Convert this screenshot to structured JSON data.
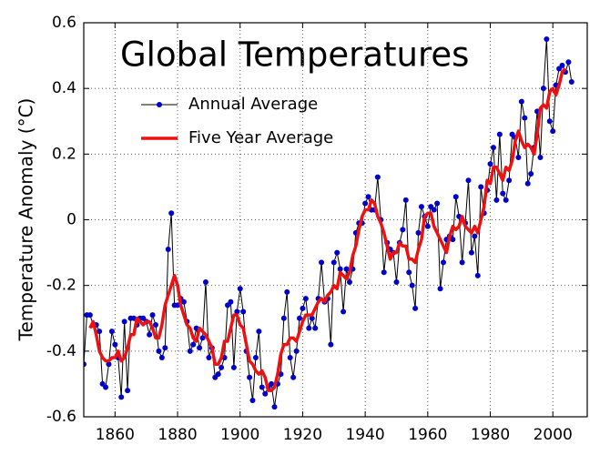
{
  "chart_data": {
    "type": "line",
    "title": "Global Temperatures",
    "y_label": "Temperature Anomaly (°C)",
    "xlim": [
      1850,
      2011
    ],
    "ylim": [
      -0.6,
      0.6
    ],
    "xticks": [
      1860,
      1880,
      1900,
      1920,
      1940,
      1960,
      1980,
      2000
    ],
    "yticks": [
      -0.6,
      -0.4,
      -0.2,
      0,
      0.2,
      0.4,
      0.6
    ],
    "grid": true,
    "legend": "upper left",
    "series": [
      {
        "name": "Annual Average",
        "color": "#0000cc",
        "line_color": "#000000",
        "markers": true,
        "x": [
          1850,
          1851,
          1852,
          1853,
          1854,
          1855,
          1856,
          1857,
          1858,
          1859,
          1860,
          1861,
          1862,
          1863,
          1864,
          1865,
          1866,
          1867,
          1868,
          1869,
          1870,
          1871,
          1872,
          1873,
          1874,
          1875,
          1876,
          1877,
          1878,
          1879,
          1880,
          1881,
          1882,
          1883,
          1884,
          1885,
          1886,
          1887,
          1888,
          1889,
          1890,
          1891,
          1892,
          1893,
          1894,
          1895,
          1896,
          1897,
          1898,
          1899,
          1900,
          1901,
          1902,
          1903,
          1904,
          1905,
          1906,
          1907,
          1908,
          1909,
          1910,
          1911,
          1912,
          1913,
          1914,
          1915,
          1916,
          1917,
          1918,
          1919,
          1920,
          1921,
          1922,
          1923,
          1924,
          1925,
          1926,
          1927,
          1928,
          1929,
          1930,
          1931,
          1932,
          1933,
          1934,
          1935,
          1936,
          1937,
          1938,
          1939,
          1940,
          1941,
          1942,
          1943,
          1944,
          1945,
          1946,
          1947,
          1948,
          1949,
          1950,
          1951,
          1952,
          1953,
          1954,
          1955,
          1956,
          1957,
          1958,
          1959,
          1960,
          1961,
          1962,
          1963,
          1964,
          1965,
          1966,
          1967,
          1968,
          1969,
          1970,
          1971,
          1972,
          1973,
          1974,
          1975,
          1976,
          1977,
          1978,
          1979,
          1980,
          1981,
          1982,
          1983,
          1984,
          1985,
          1986,
          1987,
          1988,
          1989,
          1990,
          1991,
          1992,
          1993,
          1994,
          1995,
          1996,
          1997,
          1998,
          1999,
          2000,
          2001,
          2002,
          2003,
          2004,
          2005,
          2006
        ],
        "values": [
          -0.44,
          -0.29,
          -0.29,
          -0.32,
          -0.32,
          -0.34,
          -0.5,
          -0.51,
          -0.44,
          -0.34,
          -0.38,
          -0.42,
          -0.54,
          -0.31,
          -0.52,
          -0.3,
          -0.3,
          -0.32,
          -0.3,
          -0.3,
          -0.31,
          -0.35,
          -0.29,
          -0.32,
          -0.4,
          -0.42,
          -0.39,
          -0.09,
          0.02,
          -0.26,
          -0.26,
          -0.24,
          -0.25,
          -0.31,
          -0.4,
          -0.38,
          -0.33,
          -0.39,
          -0.36,
          -0.19,
          -0.42,
          -0.39,
          -0.48,
          -0.47,
          -0.45,
          -0.42,
          -0.26,
          -0.25,
          -0.45,
          -0.28,
          -0.21,
          -0.28,
          -0.4,
          -0.48,
          -0.55,
          -0.42,
          -0.34,
          -0.51,
          -0.53,
          -0.51,
          -0.5,
          -0.57,
          -0.5,
          -0.47,
          -0.3,
          -0.22,
          -0.42,
          -0.48,
          -0.4,
          -0.3,
          -0.27,
          -0.24,
          -0.33,
          -0.3,
          -0.33,
          -0.24,
          -0.13,
          -0.25,
          -0.24,
          -0.38,
          -0.13,
          -0.1,
          -0.15,
          -0.28,
          -0.15,
          -0.19,
          -0.15,
          -0.04,
          -0.01,
          -0.01,
          0.05,
          0.07,
          0.03,
          0.03,
          0.13,
          0.0,
          -0.16,
          -0.07,
          -0.09,
          -0.1,
          -0.19,
          -0.07,
          -0.03,
          0.06,
          -0.16,
          -0.2,
          -0.27,
          -0.04,
          0.04,
          0.01,
          -0.02,
          0.04,
          0.03,
          0.05,
          -0.21,
          -0.13,
          -0.06,
          -0.05,
          -0.06,
          0.07,
          0.01,
          -0.13,
          -0.01,
          0.12,
          -0.1,
          -0.05,
          -0.17,
          0.1,
          0.02,
          0.09,
          0.17,
          0.22,
          0.06,
          0.26,
          0.08,
          0.06,
          0.12,
          0.26,
          0.25,
          0.19,
          0.36,
          0.31,
          0.11,
          0.14,
          0.22,
          0.33,
          0.19,
          0.4,
          0.55,
          0.3,
          0.27,
          0.41,
          0.46,
          0.47,
          0.45,
          0.48,
          0.42
        ]
      },
      {
        "name": "Five Year Average",
        "color": "#ee1111",
        "markers": false,
        "x": [
          1852,
          1853,
          1854,
          1855,
          1856,
          1857,
          1858,
          1859,
          1860,
          1861,
          1862,
          1863,
          1864,
          1865,
          1866,
          1867,
          1868,
          1869,
          1870,
          1871,
          1872,
          1873,
          1874,
          1875,
          1876,
          1877,
          1878,
          1879,
          1880,
          1881,
          1882,
          1883,
          1884,
          1885,
          1886,
          1887,
          1888,
          1889,
          1890,
          1891,
          1892,
          1893,
          1894,
          1895,
          1896,
          1897,
          1898,
          1899,
          1900,
          1901,
          1902,
          1903,
          1904,
          1905,
          1906,
          1907,
          1908,
          1909,
          1910,
          1911,
          1912,
          1913,
          1914,
          1915,
          1916,
          1917,
          1918,
          1919,
          1920,
          1921,
          1922,
          1923,
          1924,
          1925,
          1926,
          1927,
          1928,
          1929,
          1930,
          1931,
          1932,
          1933,
          1934,
          1935,
          1936,
          1937,
          1938,
          1939,
          1940,
          1941,
          1942,
          1943,
          1944,
          1945,
          1946,
          1947,
          1948,
          1949,
          1950,
          1951,
          1952,
          1953,
          1954,
          1955,
          1956,
          1957,
          1958,
          1959,
          1960,
          1961,
          1962,
          1963,
          1964,
          1965,
          1966,
          1967,
          1968,
          1969,
          1970,
          1971,
          1972,
          1973,
          1974,
          1975,
          1976,
          1977,
          1978,
          1979,
          1980,
          1981,
          1982,
          1983,
          1984,
          1985,
          1986,
          1987,
          1988,
          1989,
          1990,
          1991,
          1992,
          1993,
          1994,
          1995,
          1996,
          1997,
          1998,
          1999,
          2000,
          2001,
          2002,
          2003,
          2004
        ],
        "values": [
          -0.33,
          -0.31,
          -0.35,
          -0.4,
          -0.42,
          -0.43,
          -0.43,
          -0.42,
          -0.42,
          -0.4,
          -0.43,
          -0.42,
          -0.39,
          -0.35,
          -0.35,
          -0.3,
          -0.31,
          -0.32,
          -0.31,
          -0.31,
          -0.33,
          -0.36,
          -0.36,
          -0.32,
          -0.26,
          -0.23,
          -0.2,
          -0.17,
          -0.2,
          -0.26,
          -0.29,
          -0.32,
          -0.33,
          -0.36,
          -0.37,
          -0.33,
          -0.34,
          -0.35,
          -0.37,
          -0.39,
          -0.44,
          -0.44,
          -0.42,
          -0.37,
          -0.37,
          -0.33,
          -0.29,
          -0.29,
          -0.32,
          -0.33,
          -0.38,
          -0.43,
          -0.44,
          -0.46,
          -0.47,
          -0.46,
          -0.48,
          -0.52,
          -0.52,
          -0.51,
          -0.47,
          -0.41,
          -0.38,
          -0.38,
          -0.36,
          -0.36,
          -0.37,
          -0.34,
          -0.31,
          -0.29,
          -0.29,
          -0.29,
          -0.27,
          -0.25,
          -0.24,
          -0.25,
          -0.23,
          -0.22,
          -0.2,
          -0.21,
          -0.16,
          -0.17,
          -0.18,
          -0.16,
          -0.11,
          -0.08,
          -0.03,
          0.01,
          0.03,
          0.03,
          0.06,
          0.05,
          0.01,
          -0.01,
          -0.04,
          -0.08,
          -0.12,
          -0.1,
          -0.1,
          -0.07,
          -0.08,
          -0.08,
          -0.12,
          -0.12,
          -0.13,
          -0.09,
          -0.06,
          0.01,
          0.02,
          0.02,
          -0.02,
          -0.04,
          -0.06,
          -0.08,
          -0.1,
          -0.05,
          -0.02,
          -0.03,
          -0.02,
          0.01,
          -0.02,
          -0.03,
          -0.04,
          -0.02,
          -0.04,
          0.0,
          0.04,
          0.12,
          0.11,
          0.16,
          0.16,
          0.14,
          0.12,
          0.16,
          0.15,
          0.18,
          0.24,
          0.27,
          0.24,
          0.22,
          0.23,
          0.22,
          0.2,
          0.26,
          0.34,
          0.35,
          0.34,
          0.39,
          0.4,
          0.38,
          0.41,
          0.45,
          0.46
        ]
      }
    ]
  }
}
